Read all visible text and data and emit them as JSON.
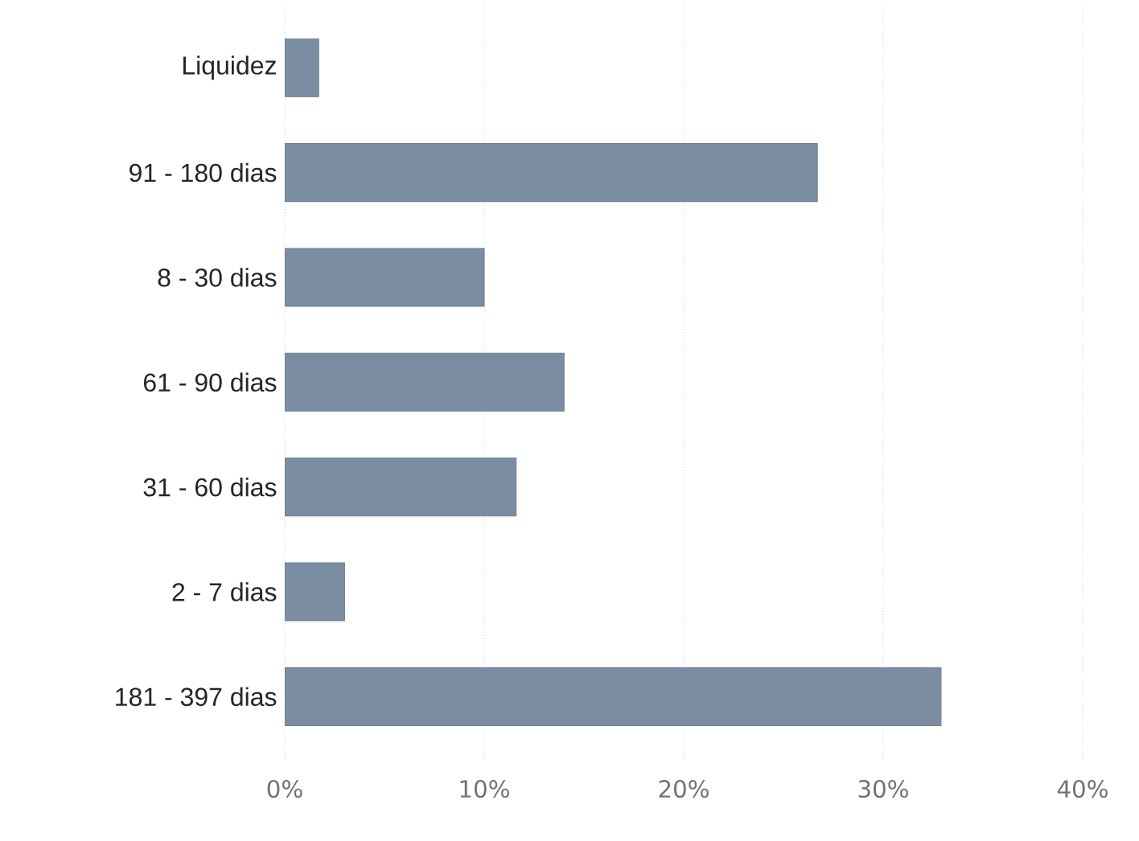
{
  "chart_data": {
    "type": "bar",
    "orientation": "horizontal",
    "categories": [
      "Liquidez",
      "91 - 180 dias",
      "8 - 30 dias",
      "61 - 90 dias",
      "31 - 60 dias",
      "2 - 7 dias",
      "181 - 397 dias"
    ],
    "values": [
      1.7,
      26.7,
      10.0,
      14.0,
      11.6,
      3.0,
      32.9
    ],
    "color": "#7a8da3",
    "xlim": [
      0,
      40
    ],
    "xticks": [
      {
        "value": 0,
        "label": "0%"
      },
      {
        "value": 10,
        "label": "10%"
      },
      {
        "value": 20,
        "label": "20%"
      },
      {
        "value": 30,
        "label": "30%"
      },
      {
        "value": 40,
        "label": "40%"
      }
    ],
    "grid": "x"
  }
}
